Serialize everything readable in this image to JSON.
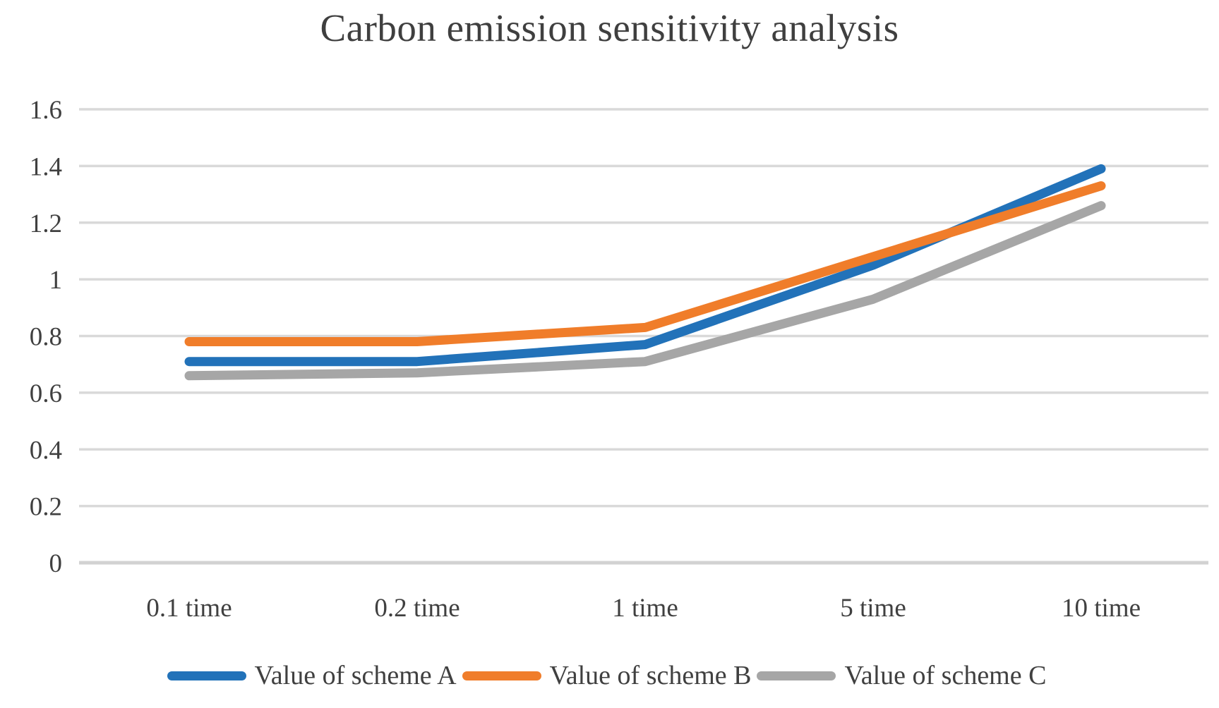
{
  "chart_data": {
    "type": "line",
    "title": "Carbon emission sensitivity analysis",
    "categories": [
      "0.1 time",
      "0.2 time",
      "1 time",
      "5 time",
      "10 time"
    ],
    "series": [
      {
        "name": "Value of scheme A",
        "color": "#2272b9",
        "values": [
          0.71,
          0.71,
          0.77,
          1.05,
          1.39
        ]
      },
      {
        "name": "Value of scheme B",
        "color": "#f07d2a",
        "values": [
          0.78,
          0.78,
          0.83,
          1.08,
          1.33
        ]
      },
      {
        "name": "Value of scheme C",
        "color": "#a6a6a6",
        "values": [
          0.66,
          0.67,
          0.71,
          0.93,
          1.26
        ]
      }
    ],
    "xlabel": "",
    "ylabel": "",
    "ylim": [
      0,
      1.6
    ],
    "ytick_step": 0.2,
    "ytick_labels": [
      "0",
      "0.2",
      "0.4",
      "0.6",
      "0.8",
      "1",
      "1.2",
      "1.4",
      "1.6"
    ],
    "grid": true,
    "gridline_color": "#d9d9d9",
    "baseline_color": "#d2d2d2",
    "text_color": "#404040",
    "legend_position": "bottom"
  }
}
